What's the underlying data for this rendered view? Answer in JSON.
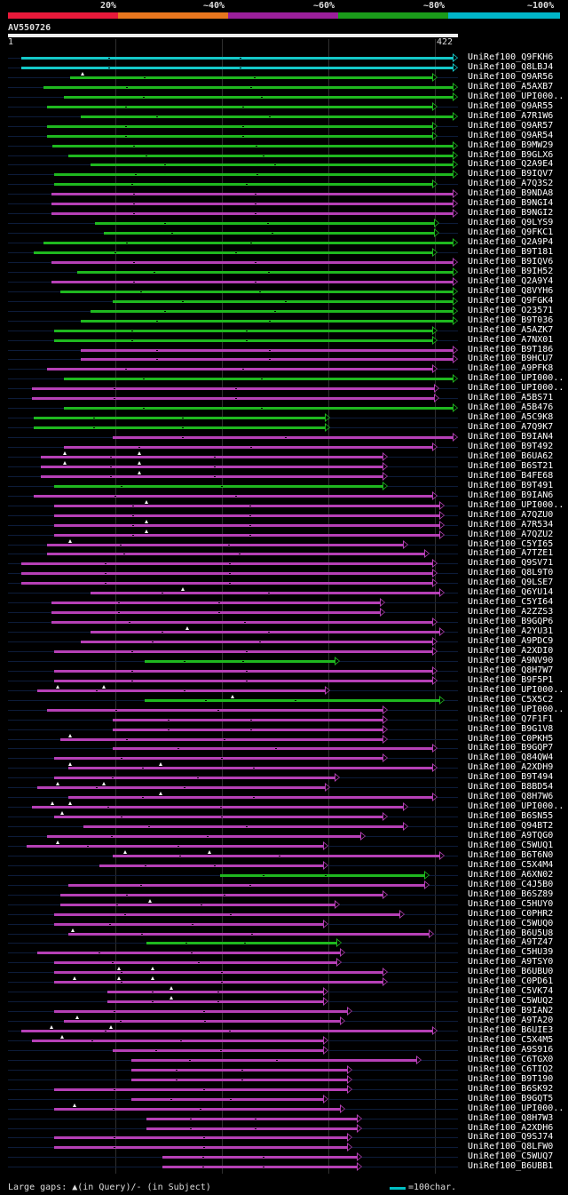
{
  "legend": {
    "labels": [
      "20%",
      "~40%",
      "~60%",
      "~80%",
      "~100%"
    ],
    "colors": [
      "#e8193a",
      "#e8761e",
      "#9b1f9b",
      "#1a9b1a",
      "#00b5c8"
    ]
  },
  "query": {
    "accession": "AV550726",
    "start": "1",
    "end": "422",
    "length": 422
  },
  "footer": {
    "gaps_text": "Large gaps: ▲(in Query)/- (in Subject)",
    "scale_text": "=100char."
  },
  "hits": [
    {
      "label": "UniRef100_Q9FKH6",
      "start": 1,
      "end": 422,
      "color": "cyan",
      "gaps": []
    },
    {
      "label": "UniRef100_Q8LBJ4",
      "start": 1,
      "end": 422,
      "color": "cyan",
      "gaps": []
    },
    {
      "label": "UniRef100_Q9AR56",
      "start": 48,
      "end": 402,
      "color": "green",
      "gaps": [
        60
      ]
    },
    {
      "label": "UniRef100_A5AXB7",
      "start": 22,
      "end": 422,
      "color": "green",
      "gaps": []
    },
    {
      "label": "UniRef100_UPI000..",
      "start": 42,
      "end": 422,
      "color": "green",
      "gaps": []
    },
    {
      "label": "UniRef100_Q9AR55",
      "start": 26,
      "end": 402,
      "color": "green",
      "gaps": []
    },
    {
      "label": "UniRef100_A7R1W6",
      "start": 58,
      "end": 422,
      "color": "green",
      "gaps": []
    },
    {
      "label": "UniRef100_Q9AR57",
      "start": 26,
      "end": 402,
      "color": "green",
      "gaps": []
    },
    {
      "label": "UniRef100_Q9AR54",
      "start": 26,
      "end": 402,
      "color": "green",
      "gaps": []
    },
    {
      "label": "UniRef100_B9MW29",
      "start": 31,
      "end": 422,
      "color": "green",
      "gaps": []
    },
    {
      "label": "UniRef100_B9GLX6",
      "start": 46,
      "end": 422,
      "color": "green",
      "gaps": []
    },
    {
      "label": "UniRef100_Q2A9E4",
      "start": 68,
      "end": 422,
      "color": "green",
      "gaps": []
    },
    {
      "label": "UniRef100_B9IQV7",
      "start": 33,
      "end": 422,
      "color": "green",
      "gaps": []
    },
    {
      "label": "UniRef100_A7Q3S2",
      "start": 33,
      "end": 402,
      "color": "green",
      "gaps": []
    },
    {
      "label": "UniRef100_B9NDA8",
      "start": 30,
      "end": 422,
      "color": "magenta",
      "gaps": []
    },
    {
      "label": "UniRef100_B9NGI4",
      "start": 30,
      "end": 422,
      "color": "magenta",
      "gaps": []
    },
    {
      "label": "UniRef100_B9NGI2",
      "start": 30,
      "end": 422,
      "color": "magenta",
      "gaps": []
    },
    {
      "label": "UniRef100_Q9LYS9",
      "start": 72,
      "end": 404,
      "color": "green",
      "gaps": []
    },
    {
      "label": "UniRef100_Q9FKC1",
      "start": 81,
      "end": 404,
      "color": "green",
      "gaps": []
    },
    {
      "label": "UniRef100_Q2A9P4",
      "start": 22,
      "end": 422,
      "color": "green",
      "gaps": []
    },
    {
      "label": "UniRef100_B9T181",
      "start": 13,
      "end": 402,
      "color": "green",
      "gaps": []
    },
    {
      "label": "UniRef100_B9IQV6",
      "start": 30,
      "end": 422,
      "color": "magenta",
      "gaps": []
    },
    {
      "label": "UniRef100_B9IH52",
      "start": 55,
      "end": 422,
      "color": "green",
      "gaps": []
    },
    {
      "label": "UniRef100_Q2A9Y4",
      "start": 30,
      "end": 422,
      "color": "magenta",
      "gaps": []
    },
    {
      "label": "UniRef100_Q8VYH6",
      "start": 39,
      "end": 422,
      "color": "green",
      "gaps": []
    },
    {
      "label": "UniRef100_Q9FGK4",
      "start": 89,
      "end": 422,
      "color": "green",
      "gaps": []
    },
    {
      "label": "UniRef100_O23571",
      "start": 68,
      "end": 422,
      "color": "green",
      "gaps": []
    },
    {
      "label": "UniRef100_B9T036",
      "start": 58,
      "end": 422,
      "color": "green",
      "gaps": []
    },
    {
      "label": "UniRef100_A5AZK7",
      "start": 33,
      "end": 402,
      "color": "green",
      "gaps": []
    },
    {
      "label": "UniRef100_A7NX01",
      "start": 33,
      "end": 402,
      "color": "green",
      "gaps": []
    },
    {
      "label": "UniRef100_B9T186",
      "start": 58,
      "end": 422,
      "color": "magenta",
      "gaps": []
    },
    {
      "label": "UniRef100_B9HCU7",
      "start": 58,
      "end": 422,
      "color": "magenta",
      "gaps": []
    },
    {
      "label": "UniRef100_A9PFK8",
      "start": 26,
      "end": 402,
      "color": "magenta",
      "gaps": []
    },
    {
      "label": "UniRef100_UPI000..",
      "start": 42,
      "end": 422,
      "color": "green",
      "gaps": []
    },
    {
      "label": "UniRef100_UPI000..",
      "start": 11,
      "end": 404,
      "color": "magenta",
      "gaps": []
    },
    {
      "label": "UniRef100_A5BS71",
      "start": 11,
      "end": 404,
      "color": "magenta",
      "gaps": []
    },
    {
      "label": "UniRef100_A5B476",
      "start": 42,
      "end": 422,
      "color": "green",
      "gaps": []
    },
    {
      "label": "UniRef100_A5C9K8",
      "start": 13,
      "end": 299,
      "color": "green",
      "gaps": []
    },
    {
      "label": "UniRef100_A7Q9K7",
      "start": 13,
      "end": 299,
      "color": "green",
      "gaps": []
    },
    {
      "label": "UniRef100_B9IAN4",
      "start": 89,
      "end": 422,
      "color": "magenta",
      "gaps": []
    },
    {
      "label": "UniRef100_B9T492",
      "start": 42,
      "end": 402,
      "color": "magenta",
      "gaps": []
    },
    {
      "label": "UniRef100_B6UA62",
      "start": 20,
      "end": 354,
      "color": "magenta",
      "gaps": [
        43,
        115
      ]
    },
    {
      "label": "UniRef100_B6ST21",
      "start": 20,
      "end": 354,
      "color": "magenta",
      "gaps": [
        43,
        115
      ]
    },
    {
      "label": "UniRef100_B4FE68",
      "start": 20,
      "end": 354,
      "color": "magenta",
      "gaps": [
        115
      ]
    },
    {
      "label": "UniRef100_B9T491",
      "start": 33,
      "end": 354,
      "color": "green",
      "gaps": []
    },
    {
      "label": "UniRef100_B9IAN6",
      "start": 13,
      "end": 402,
      "color": "magenta",
      "gaps": []
    },
    {
      "label": "UniRef100_UPI000..",
      "start": 33,
      "end": 409,
      "color": "magenta",
      "gaps": [
        122
      ]
    },
    {
      "label": "UniRef100_A7QZU0",
      "start": 33,
      "end": 409,
      "color": "magenta",
      "gaps": []
    },
    {
      "label": "UniRef100_A7R534",
      "start": 33,
      "end": 409,
      "color": "magenta",
      "gaps": [
        122
      ]
    },
    {
      "label": "UniRef100_A7QZU2",
      "start": 33,
      "end": 409,
      "color": "magenta",
      "gaps": [
        122
      ]
    },
    {
      "label": "UniRef100_C5YI65",
      "start": 26,
      "end": 374,
      "color": "magenta",
      "gaps": [
        48
      ]
    },
    {
      "label": "UniRef100_A7TZE1",
      "start": 26,
      "end": 395,
      "color": "magenta",
      "gaps": []
    },
    {
      "label": "UniRef100_Q9SV71",
      "start": 1,
      "end": 402,
      "color": "magenta",
      "gaps": []
    },
    {
      "label": "UniRef100_Q8L9T0",
      "start": 1,
      "end": 402,
      "color": "magenta",
      "gaps": []
    },
    {
      "label": "UniRef100_Q9LSE7",
      "start": 1,
      "end": 402,
      "color": "magenta",
      "gaps": []
    },
    {
      "label": "UniRef100_Q6YU14",
      "start": 68,
      "end": 409,
      "color": "magenta",
      "gaps": [
        157
      ]
    },
    {
      "label": "UniRef100_C5YI64",
      "start": 30,
      "end": 352,
      "color": "magenta",
      "gaps": []
    },
    {
      "label": "UniRef100_A2ZZS3",
      "start": 30,
      "end": 352,
      "color": "magenta",
      "gaps": []
    },
    {
      "label": "UniRef100_B9GQP6",
      "start": 30,
      "end": 402,
      "color": "magenta",
      "gaps": []
    },
    {
      "label": "UniRef100_A2YU31",
      "start": 68,
      "end": 409,
      "color": "magenta",
      "gaps": [
        161
      ]
    },
    {
      "label": "UniRef100_A9PDC9",
      "start": 58,
      "end": 402,
      "color": "magenta",
      "gaps": []
    },
    {
      "label": "UniRef100_A2XDI0",
      "start": 33,
      "end": 402,
      "color": "magenta",
      "gaps": []
    },
    {
      "label": "UniRef100_A9NV90",
      "start": 120,
      "end": 308,
      "color": "green",
      "gaps": []
    },
    {
      "label": "UniRef100_Q8H7W7",
      "start": 33,
      "end": 402,
      "color": "magenta",
      "gaps": []
    },
    {
      "label": "UniRef100_B9F5P1",
      "start": 33,
      "end": 402,
      "color": "magenta",
      "gaps": []
    },
    {
      "label": "UniRef100_UPI000..",
      "start": 16,
      "end": 299,
      "color": "magenta",
      "gaps": [
        36,
        81
      ]
    },
    {
      "label": "UniRef100_C5X5C2",
      "start": 120,
      "end": 409,
      "color": "green",
      "gaps": [
        205
      ]
    },
    {
      "label": "UniRef100_UPI000..",
      "start": 26,
      "end": 354,
      "color": "magenta",
      "gaps": []
    },
    {
      "label": "UniRef100_Q7F1F1",
      "start": 89,
      "end": 354,
      "color": "magenta",
      "gaps": []
    },
    {
      "label": "UniRef100_B9G1V8",
      "start": 89,
      "end": 354,
      "color": "magenta",
      "gaps": []
    },
    {
      "label": "UniRef100_C0PKH5",
      "start": 39,
      "end": 354,
      "color": "magenta",
      "gaps": [
        48
      ]
    },
    {
      "label": "UniRef100_B9GQP7",
      "start": 89,
      "end": 402,
      "color": "magenta",
      "gaps": []
    },
    {
      "label": "UniRef100_Q84QW4",
      "start": 33,
      "end": 354,
      "color": "magenta",
      "gaps": []
    },
    {
      "label": "UniRef100_A2XDH9",
      "start": 46,
      "end": 402,
      "color": "magenta",
      "gaps": [
        48,
        135
      ]
    },
    {
      "label": "UniRef100_B9T494",
      "start": 33,
      "end": 308,
      "color": "magenta",
      "gaps": []
    },
    {
      "label": "UniRef100_B8BD54",
      "start": 16,
      "end": 299,
      "color": "magenta",
      "gaps": [
        36,
        81
      ]
    },
    {
      "label": "UniRef100_Q8H7W6",
      "start": 46,
      "end": 402,
      "color": "magenta",
      "gaps": [
        135
      ]
    },
    {
      "label": "UniRef100_UPI000..",
      "start": 11,
      "end": 374,
      "color": "magenta",
      "gaps": [
        31,
        48
      ]
    },
    {
      "label": "UniRef100_B6SN55",
      "start": 33,
      "end": 354,
      "color": "magenta",
      "gaps": [
        40
      ]
    },
    {
      "label": "UniRef100_Q94BT2",
      "start": 61,
      "end": 374,
      "color": "magenta",
      "gaps": []
    },
    {
      "label": "UniRef100_A9TQG0",
      "start": 26,
      "end": 333,
      "color": "magenta",
      "gaps": []
    },
    {
      "label": "UniRef100_C5WUQ1",
      "start": 6,
      "end": 297,
      "color": "magenta",
      "gaps": [
        36
      ]
    },
    {
      "label": "UniRef100_B6T6N0",
      "start": 89,
      "end": 409,
      "color": "magenta",
      "gaps": [
        101,
        182
      ]
    },
    {
      "label": "UniRef100_C5X4M4",
      "start": 76,
      "end": 297,
      "color": "magenta",
      "gaps": []
    },
    {
      "label": "UniRef100_A6XN02",
      "start": 193,
      "end": 395,
      "color": "green",
      "gaps": []
    },
    {
      "label": "UniRef100_C4J5B0",
      "start": 46,
      "end": 395,
      "color": "magenta",
      "gaps": []
    },
    {
      "label": "UniRef100_B6SZ89",
      "start": 39,
      "end": 354,
      "color": "magenta",
      "gaps": []
    },
    {
      "label": "UniRef100_C5HUY0",
      "start": 39,
      "end": 308,
      "color": "magenta",
      "gaps": [
        125
      ]
    },
    {
      "label": "UniRef100_C0PHR2",
      "start": 33,
      "end": 371,
      "color": "magenta",
      "gaps": []
    },
    {
      "label": "UniRef100_C5WUQ0",
      "start": 33,
      "end": 297,
      "color": "magenta",
      "gaps": []
    },
    {
      "label": "UniRef100_B6U5U8",
      "start": 46,
      "end": 399,
      "color": "magenta",
      "gaps": [
        51
      ]
    },
    {
      "label": "UniRef100_A9TZ47",
      "start": 122,
      "end": 310,
      "color": "green",
      "gaps": []
    },
    {
      "label": "UniRef100_C5HU39",
      "start": 16,
      "end": 313,
      "color": "magenta",
      "gaps": []
    },
    {
      "label": "UniRef100_A9TSY0",
      "start": 33,
      "end": 310,
      "color": "magenta",
      "gaps": []
    },
    {
      "label": "UniRef100_B6UBU0",
      "start": 33,
      "end": 354,
      "color": "magenta",
      "gaps": [
        95,
        128
      ]
    },
    {
      "label": "UniRef100_C0PD61",
      "start": 33,
      "end": 354,
      "color": "magenta",
      "gaps": [
        52,
        95,
        128
      ]
    },
    {
      "label": "UniRef100_C5VK74",
      "start": 84,
      "end": 297,
      "color": "magenta",
      "gaps": [
        146
      ]
    },
    {
      "label": "UniRef100_C5WUQ2",
      "start": 84,
      "end": 297,
      "color": "magenta",
      "gaps": [
        146
      ]
    },
    {
      "label": "UniRef100_B9IAN2",
      "start": 33,
      "end": 320,
      "color": "magenta",
      "gaps": []
    },
    {
      "label": "UniRef100_A9TA20",
      "start": 42,
      "end": 313,
      "color": "magenta",
      "gaps": [
        55
      ]
    },
    {
      "label": "UniRef100_B6UIE3",
      "start": 1,
      "end": 402,
      "color": "magenta",
      "gaps": [
        30,
        87
      ]
    },
    {
      "label": "UniRef100_C5X4M5",
      "start": 11,
      "end": 297,
      "color": "magenta",
      "gaps": [
        40
      ]
    },
    {
      "label": "UniRef100_A9S916",
      "start": 89,
      "end": 297,
      "color": "magenta",
      "gaps": []
    },
    {
      "label": "UniRef100_C6TGX0",
      "start": 107,
      "end": 387,
      "color": "magenta",
      "gaps": []
    },
    {
      "label": "UniRef100_C6TIQ2",
      "start": 107,
      "end": 320,
      "color": "magenta",
      "gaps": []
    },
    {
      "label": "UniRef100_B9T190",
      "start": 107,
      "end": 320,
      "color": "magenta",
      "gaps": []
    },
    {
      "label": "UniRef100_B6SK92",
      "start": 33,
      "end": 320,
      "color": "magenta",
      "gaps": []
    },
    {
      "label": "UniRef100_B9GQT5",
      "start": 107,
      "end": 297,
      "color": "magenta",
      "gaps": []
    },
    {
      "label": "UniRef100_UPI000..",
      "start": 33,
      "end": 313,
      "color": "magenta",
      "gaps": [
        52
      ]
    },
    {
      "label": "UniRef100_Q8H7W3",
      "start": 122,
      "end": 330,
      "color": "magenta",
      "gaps": []
    },
    {
      "label": "UniRef100_A2XDH6",
      "start": 122,
      "end": 330,
      "color": "magenta",
      "gaps": []
    },
    {
      "label": "UniRef100_Q9SJ74",
      "start": 33,
      "end": 320,
      "color": "magenta",
      "gaps": []
    },
    {
      "label": "UniRef100_Q8LFW0",
      "start": 33,
      "end": 320,
      "color": "magenta",
      "gaps": []
    },
    {
      "label": "UniRef100_C5WUQ7",
      "start": 137,
      "end": 330,
      "color": "magenta",
      "gaps": []
    },
    {
      "label": "UniRef100_B6UBB1",
      "start": 137,
      "end": 330,
      "color": "magenta",
      "gaps": []
    }
  ]
}
